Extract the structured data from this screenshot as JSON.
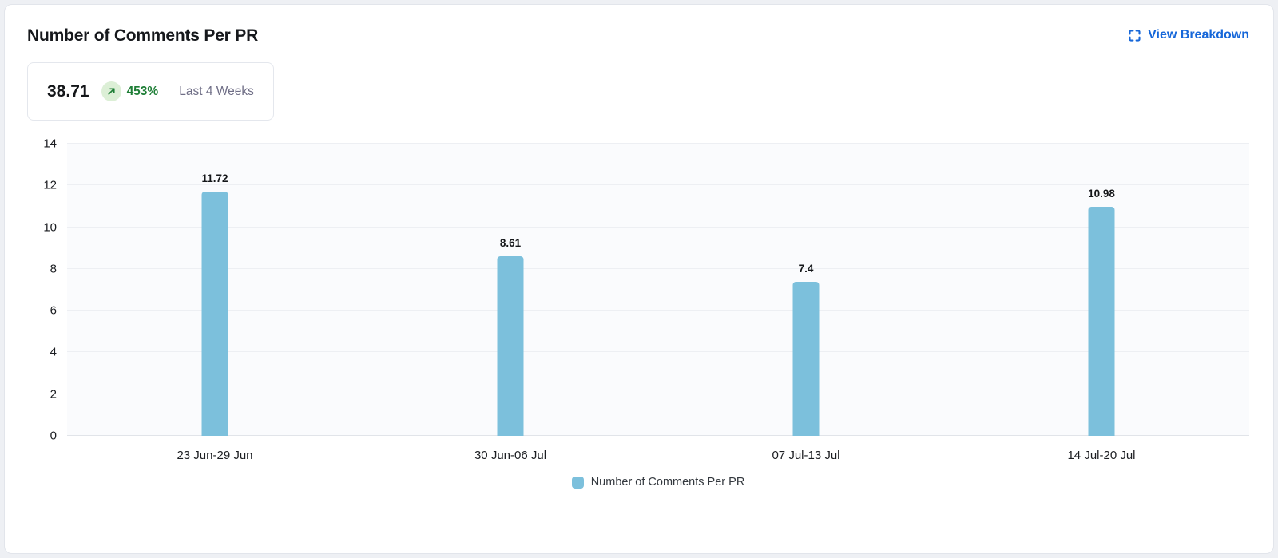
{
  "header": {
    "title": "Number of Comments Per PR",
    "view_breakdown_label": "View Breakdown"
  },
  "stat": {
    "value": "38.71",
    "change_percent": "453%",
    "change_direction": "up",
    "period_label": "Last 4 Weeks"
  },
  "chart_data": {
    "type": "bar",
    "title": "Number of Comments Per PR",
    "categories": [
      "23 Jun-29 Jun",
      "30 Jun-06 Jul",
      "07 Jul-13 Jul",
      "14 Jul-20 Jul"
    ],
    "values": [
      11.72,
      8.61,
      7.4,
      10.98
    ],
    "value_labels": [
      "11.72",
      "8.61",
      "7.4",
      "10.98"
    ],
    "xlabel": "",
    "ylabel": "",
    "ylim": [
      0,
      14
    ],
    "yticks": [
      0,
      2,
      4,
      6,
      8,
      10,
      12,
      14
    ],
    "grid": true,
    "bar_color": "#7cc0dc",
    "legend_position": "bottom",
    "legend": [
      {
        "label": "Number of Comments Per PR",
        "color": "#7cc0dc"
      }
    ]
  },
  "colors": {
    "accent_blue": "#1667d9",
    "bar_blue": "#7cc0dc",
    "positive_green": "#1e7e36",
    "badge_bg": "#dcefd6"
  }
}
